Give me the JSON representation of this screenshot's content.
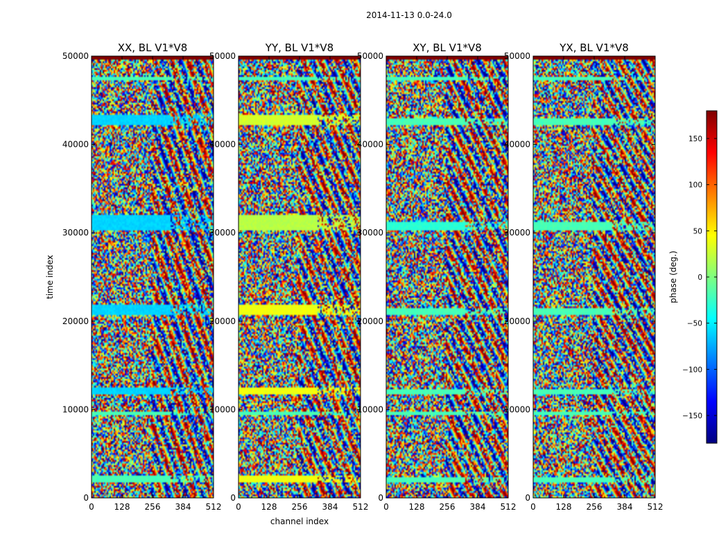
{
  "figure_title": "2014-11-13 0.0-24.0",
  "colormap": {
    "name": "jet",
    "stops": [
      "#00007f",
      "#0000ff",
      "#007fff",
      "#00ffff",
      "#7fff7f",
      "#ffff00",
      "#ff7f00",
      "#ff0000",
      "#7f0000"
    ]
  },
  "chart_data": [
    {
      "type": "heatmap",
      "title": "XX, BL V1*V8",
      "xlabel": "",
      "ylabel": "time index",
      "xlim": [
        0,
        512
      ],
      "ylim": [
        0,
        50000
      ],
      "xticks": [
        0,
        128,
        256,
        384,
        512
      ],
      "yticks": [
        0,
        10000,
        20000,
        30000,
        40000,
        50000
      ],
      "value_range": [
        -180,
        180
      ],
      "flagged_value": 180,
      "flagged_bands": [
        [
          49600,
          50400
        ]
      ],
      "flat_bands": [
        {
          "y": [
            1800,
            2600
          ],
          "value": -20
        },
        {
          "y": [
            9300,
            9700
          ],
          "value": -20
        },
        {
          "y": [
            11800,
            12500
          ],
          "value": -60
        },
        {
          "y": [
            20800,
            21800
          ],
          "value": -60
        },
        {
          "y": [
            30200,
            32000
          ],
          "value": -60
        },
        {
          "y": [
            42200,
            43300
          ],
          "value": -60
        },
        {
          "y": [
            47300,
            47700
          ],
          "value": -20
        }
      ]
    },
    {
      "type": "heatmap",
      "title": "YY, BL V1*V8",
      "xlabel": "channel index",
      "ylabel": "",
      "xlim": [
        0,
        512
      ],
      "ylim": [
        0,
        50000
      ],
      "xticks": [
        0,
        128,
        256,
        384,
        512
      ],
      "yticks": [
        0,
        10000,
        20000,
        30000,
        40000,
        50000
      ],
      "value_range": [
        -180,
        180
      ],
      "flagged_value": 180,
      "flagged_bands": [
        [
          49600,
          50400
        ]
      ],
      "flat_bands": [
        {
          "y": [
            1800,
            2600
          ],
          "value": 40
        },
        {
          "y": [
            9300,
            9700
          ],
          "value": -20
        },
        {
          "y": [
            11800,
            12500
          ],
          "value": 40
        },
        {
          "y": [
            20800,
            21800
          ],
          "value": 40
        },
        {
          "y": [
            30200,
            32000
          ],
          "value": 20
        },
        {
          "y": [
            42200,
            43300
          ],
          "value": 30
        },
        {
          "y": [
            47300,
            47700
          ],
          "value": -20
        }
      ]
    },
    {
      "type": "heatmap",
      "title": "XY, BL V1*V8",
      "xlabel": "",
      "ylabel": "",
      "xlim": [
        0,
        512
      ],
      "ylim": [
        0,
        50000
      ],
      "xticks": [
        0,
        128,
        256,
        384,
        512
      ],
      "yticks": [
        0,
        10000,
        20000,
        30000,
        40000,
        50000
      ],
      "value_range": [
        -180,
        180
      ],
      "flagged_value": 180,
      "flagged_bands": [
        [
          49600,
          50400
        ]
      ],
      "flat_bands": [
        {
          "y": [
            1800,
            2400
          ],
          "value": -20
        },
        {
          "y": [
            9300,
            9700
          ],
          "value": -20
        },
        {
          "y": [
            11800,
            12300
          ],
          "value": -20
        },
        {
          "y": [
            20800,
            21500
          ],
          "value": -20
        },
        {
          "y": [
            30200,
            31200
          ],
          "value": -30
        },
        {
          "y": [
            42200,
            43000
          ],
          "value": -20
        },
        {
          "y": [
            47300,
            47700
          ],
          "value": -20
        }
      ]
    },
    {
      "type": "heatmap",
      "title": "YX, BL V1*V8",
      "xlabel": "",
      "ylabel": "",
      "xlim": [
        0,
        512
      ],
      "ylim": [
        0,
        50000
      ],
      "xticks": [
        0,
        128,
        256,
        384,
        512
      ],
      "yticks": [
        0,
        10000,
        20000,
        30000,
        40000,
        50000
      ],
      "value_range": [
        -180,
        180
      ],
      "flagged_value": 180,
      "flagged_bands": [
        [
          49600,
          50400
        ]
      ],
      "flat_bands": [
        {
          "y": [
            1800,
            2400
          ],
          "value": -20
        },
        {
          "y": [
            9300,
            9700
          ],
          "value": -20
        },
        {
          "y": [
            11800,
            12300
          ],
          "value": -20
        },
        {
          "y": [
            20800,
            21500
          ],
          "value": -20
        },
        {
          "y": [
            30200,
            31200
          ],
          "value": -20
        },
        {
          "y": [
            42200,
            43000
          ],
          "value": -20
        },
        {
          "y": [
            47300,
            47700
          ],
          "value": -20
        }
      ]
    }
  ],
  "colorbar": {
    "label": "phase (deg.)",
    "vmin": -180,
    "vmax": 180,
    "ticks": [
      -150,
      -100,
      -50,
      0,
      50,
      100,
      150
    ],
    "tick_labels": [
      "−150",
      "−100",
      "−50",
      "0",
      "50",
      "100",
      "150"
    ]
  }
}
